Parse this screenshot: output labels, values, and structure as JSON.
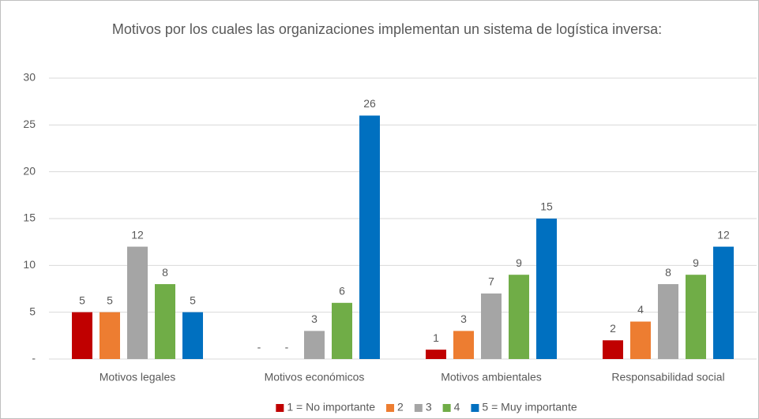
{
  "chart_data": {
    "type": "bar",
    "title": "Motivos por los cuales las organizaciones implementan un sistema de logística inversa:",
    "categories": [
      "Motivos legales",
      "Motivos económicos",
      "Motivos ambientales",
      "Responsabilidad social"
    ],
    "series": [
      {
        "name": "1 = No importante",
        "color": "#c00000",
        "values": [
          5,
          0,
          1,
          2
        ],
        "value_labels": [
          "5",
          "-",
          "1",
          "2"
        ]
      },
      {
        "name": "2",
        "color": "#ed7d31",
        "values": [
          5,
          0,
          3,
          4
        ],
        "value_labels": [
          "5",
          "-",
          "3",
          "4"
        ]
      },
      {
        "name": "3",
        "color": "#a5a5a5",
        "values": [
          12,
          3,
          7,
          8
        ]
      },
      {
        "name": "4",
        "color": "#70ad47",
        "values": [
          8,
          6,
          9,
          9
        ]
      },
      {
        "name": "5 = Muy importante",
        "color": "#0070c0",
        "values": [
          5,
          26,
          15,
          12
        ]
      }
    ],
    "ylim": [
      0,
      30
    ],
    "yticks": [
      {
        "value": 0,
        "label": "-"
      },
      5,
      10,
      15,
      20,
      25,
      30
    ],
    "grid": true,
    "legend": "bottom"
  }
}
